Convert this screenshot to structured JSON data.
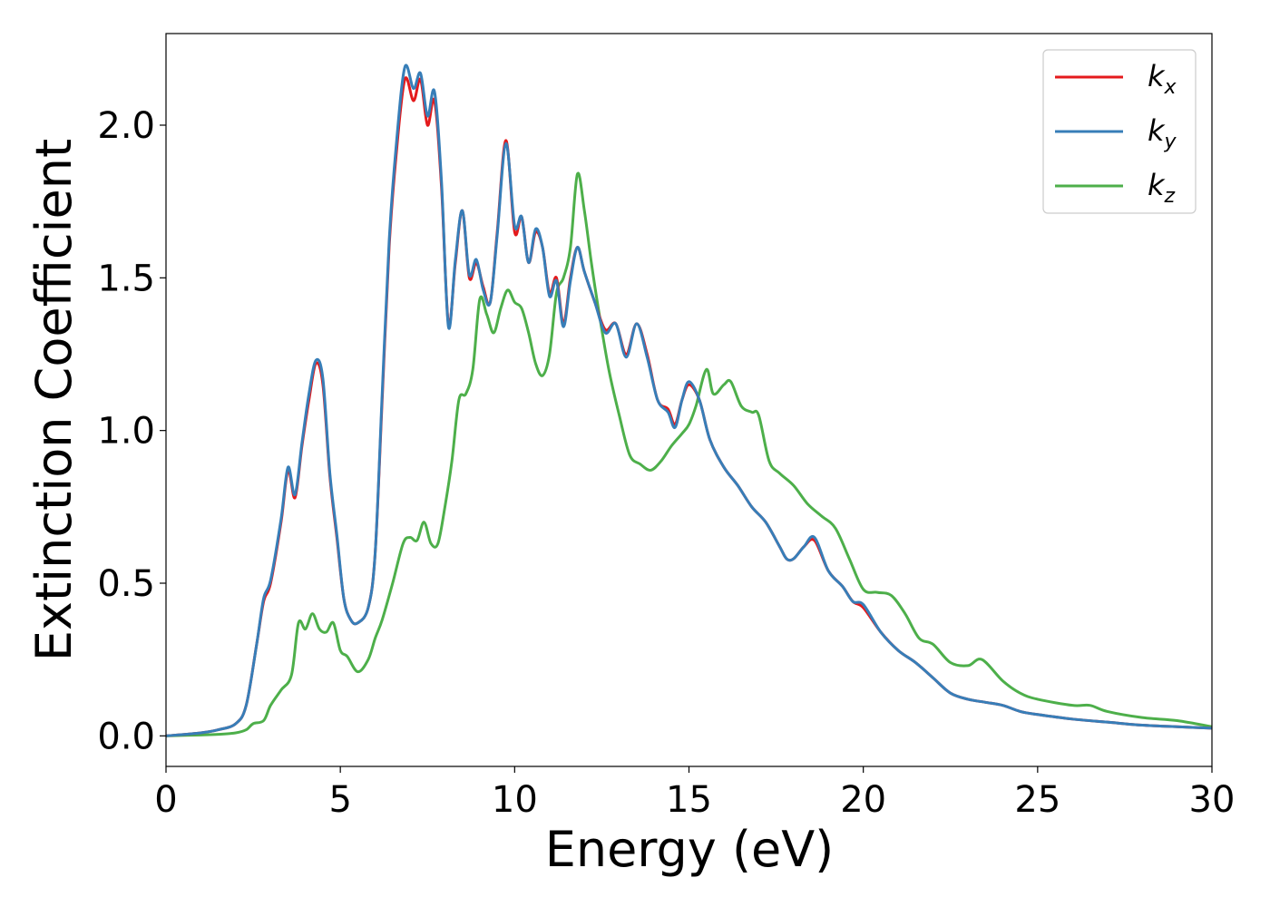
{
  "chart_data": {
    "type": "line",
    "title": "",
    "xlabel": "Energy (eV)",
    "ylabel": "Extinction Coefficient",
    "xlim": [
      0,
      30
    ],
    "ylim": [
      -0.1,
      2.3
    ],
    "xticks": [
      0,
      5,
      10,
      15,
      20,
      25,
      30
    ],
    "xtick_labels": [
      "0",
      "5",
      "10",
      "15",
      "20",
      "25",
      "30"
    ],
    "yticks": [
      0.0,
      0.5,
      1.0,
      1.5,
      2.0
    ],
    "ytick_labels": [
      "0.0",
      "0.5",
      "1.0",
      "1.5",
      "2.0"
    ],
    "grid": false,
    "legend_position": "top-right",
    "series": [
      {
        "name": "k_x",
        "legend_main": "k",
        "legend_sub": "x",
        "color": "#e41a1c",
        "x": [
          0,
          1,
          1.5,
          2,
          2.3,
          2.6,
          2.8,
          3.0,
          3.3,
          3.5,
          3.7,
          3.9,
          4.1,
          4.3,
          4.5,
          4.7,
          4.9,
          5.1,
          5.3,
          5.5,
          5.8,
          6.0,
          6.2,
          6.4,
          6.6,
          6.85,
          7.1,
          7.3,
          7.5,
          7.7,
          7.9,
          8.1,
          8.3,
          8.5,
          8.7,
          8.9,
          9.1,
          9.3,
          9.5,
          9.75,
          10.0,
          10.2,
          10.4,
          10.6,
          10.8,
          11.0,
          11.2,
          11.4,
          11.6,
          11.8,
          12.0,
          12.3,
          12.6,
          12.9,
          13.2,
          13.5,
          13.8,
          14.1,
          14.4,
          14.6,
          14.8,
          15.0,
          15.3,
          15.6,
          16.0,
          16.4,
          16.8,
          17.2,
          17.6,
          17.8,
          18.0,
          18.3,
          18.6,
          19.0,
          19.4,
          19.7,
          20.0,
          20.5,
          21.0,
          21.5,
          22.0,
          22.5,
          23.0,
          23.5,
          24.0,
          24.5,
          25.0,
          26.0,
          27.0,
          28.0,
          29.0,
          30.0
        ],
        "values": [
          0.0,
          0.01,
          0.02,
          0.04,
          0.1,
          0.3,
          0.44,
          0.5,
          0.7,
          0.87,
          0.78,
          0.95,
          1.1,
          1.22,
          1.15,
          0.85,
          0.65,
          0.45,
          0.38,
          0.37,
          0.42,
          0.6,
          1.1,
          1.6,
          1.9,
          2.15,
          2.08,
          2.15,
          2.0,
          2.08,
          1.8,
          1.35,
          1.55,
          1.72,
          1.5,
          1.55,
          1.47,
          1.42,
          1.65,
          1.95,
          1.65,
          1.7,
          1.55,
          1.65,
          1.6,
          1.45,
          1.5,
          1.35,
          1.5,
          1.6,
          1.52,
          1.42,
          1.33,
          1.35,
          1.25,
          1.35,
          1.25,
          1.1,
          1.07,
          1.02,
          1.1,
          1.15,
          1.1,
          0.97,
          0.88,
          0.82,
          0.75,
          0.7,
          0.62,
          0.58,
          0.58,
          0.62,
          0.64,
          0.54,
          0.49,
          0.44,
          0.42,
          0.34,
          0.28,
          0.24,
          0.19,
          0.14,
          0.12,
          0.11,
          0.1,
          0.08,
          0.07,
          0.055,
          0.045,
          0.035,
          0.03,
          0.025
        ]
      },
      {
        "name": "k_y",
        "legend_main": "k",
        "legend_sub": "y",
        "color": "#377eb8",
        "x": [
          0,
          1,
          1.5,
          2,
          2.3,
          2.6,
          2.8,
          3.0,
          3.3,
          3.5,
          3.7,
          3.9,
          4.1,
          4.3,
          4.5,
          4.7,
          4.9,
          5.1,
          5.3,
          5.5,
          5.8,
          6.0,
          6.2,
          6.4,
          6.6,
          6.85,
          7.1,
          7.3,
          7.5,
          7.7,
          7.9,
          8.1,
          8.3,
          8.5,
          8.7,
          8.9,
          9.1,
          9.3,
          9.5,
          9.75,
          10.0,
          10.2,
          10.4,
          10.6,
          10.8,
          11.0,
          11.2,
          11.4,
          11.6,
          11.8,
          12.0,
          12.3,
          12.6,
          12.9,
          13.2,
          13.5,
          13.8,
          14.1,
          14.4,
          14.6,
          14.8,
          15.0,
          15.3,
          15.6,
          16.0,
          16.4,
          16.8,
          17.2,
          17.6,
          17.8,
          18.0,
          18.3,
          18.6,
          19.0,
          19.4,
          19.7,
          20.0,
          20.5,
          21.0,
          21.5,
          22.0,
          22.5,
          23.0,
          23.5,
          24.0,
          24.5,
          25.0,
          26.0,
          27.0,
          28.0,
          29.0,
          30.0
        ],
        "values": [
          0.0,
          0.01,
          0.02,
          0.04,
          0.1,
          0.3,
          0.45,
          0.51,
          0.71,
          0.88,
          0.79,
          0.96,
          1.12,
          1.23,
          1.17,
          0.86,
          0.66,
          0.45,
          0.38,
          0.37,
          0.42,
          0.6,
          1.12,
          1.62,
          1.93,
          2.19,
          2.12,
          2.17,
          2.03,
          2.11,
          1.82,
          1.34,
          1.56,
          1.72,
          1.51,
          1.56,
          1.46,
          1.42,
          1.64,
          1.94,
          1.67,
          1.7,
          1.55,
          1.66,
          1.6,
          1.44,
          1.49,
          1.34,
          1.49,
          1.6,
          1.52,
          1.42,
          1.32,
          1.35,
          1.24,
          1.35,
          1.24,
          1.1,
          1.06,
          1.01,
          1.1,
          1.16,
          1.1,
          0.97,
          0.88,
          0.82,
          0.75,
          0.7,
          0.62,
          0.58,
          0.58,
          0.62,
          0.65,
          0.54,
          0.49,
          0.44,
          0.43,
          0.34,
          0.28,
          0.24,
          0.19,
          0.14,
          0.12,
          0.11,
          0.1,
          0.08,
          0.07,
          0.055,
          0.045,
          0.035,
          0.03,
          0.025
        ]
      },
      {
        "name": "k_z",
        "legend_main": "k",
        "legend_sub": "z",
        "color": "#4daf4a",
        "x": [
          0,
          1,
          1.5,
          2,
          2.3,
          2.5,
          2.8,
          3.0,
          3.3,
          3.6,
          3.8,
          4.0,
          4.2,
          4.4,
          4.6,
          4.8,
          5.0,
          5.2,
          5.5,
          5.8,
          6.0,
          6.2,
          6.5,
          6.8,
          7.0,
          7.2,
          7.4,
          7.6,
          7.8,
          8.0,
          8.2,
          8.4,
          8.6,
          8.8,
          9.0,
          9.2,
          9.4,
          9.6,
          9.8,
          10.0,
          10.2,
          10.4,
          10.6,
          10.8,
          11.0,
          11.2,
          11.4,
          11.6,
          11.8,
          12.0,
          12.2,
          12.4,
          12.7,
          13.0,
          13.3,
          13.6,
          13.9,
          14.2,
          14.5,
          14.8,
          15.0,
          15.2,
          15.5,
          15.7,
          16.0,
          16.2,
          16.5,
          16.8,
          17.0,
          17.3,
          17.6,
          18.0,
          18.4,
          18.8,
          19.2,
          19.6,
          20.0,
          20.4,
          20.8,
          21.2,
          21.6,
          22.0,
          22.5,
          23.0,
          23.4,
          24.0,
          24.5,
          25.0,
          26.0,
          26.5,
          27.0,
          28.0,
          29.0,
          30.0
        ],
        "values": [
          0.0,
          0.003,
          0.005,
          0.01,
          0.02,
          0.04,
          0.05,
          0.1,
          0.15,
          0.2,
          0.37,
          0.35,
          0.4,
          0.35,
          0.34,
          0.37,
          0.28,
          0.26,
          0.21,
          0.25,
          0.32,
          0.38,
          0.5,
          0.63,
          0.65,
          0.64,
          0.7,
          0.63,
          0.63,
          0.75,
          0.9,
          1.1,
          1.12,
          1.2,
          1.43,
          1.38,
          1.32,
          1.4,
          1.46,
          1.42,
          1.4,
          1.32,
          1.22,
          1.18,
          1.25,
          1.45,
          1.5,
          1.6,
          1.84,
          1.72,
          1.55,
          1.4,
          1.2,
          1.05,
          0.92,
          0.89,
          0.87,
          0.9,
          0.95,
          0.99,
          1.02,
          1.08,
          1.2,
          1.12,
          1.15,
          1.16,
          1.08,
          1.06,
          1.05,
          0.9,
          0.86,
          0.82,
          0.76,
          0.72,
          0.68,
          0.58,
          0.48,
          0.47,
          0.46,
          0.4,
          0.32,
          0.3,
          0.24,
          0.23,
          0.25,
          0.18,
          0.14,
          0.12,
          0.1,
          0.1,
          0.08,
          0.06,
          0.05,
          0.03
        ]
      }
    ]
  }
}
